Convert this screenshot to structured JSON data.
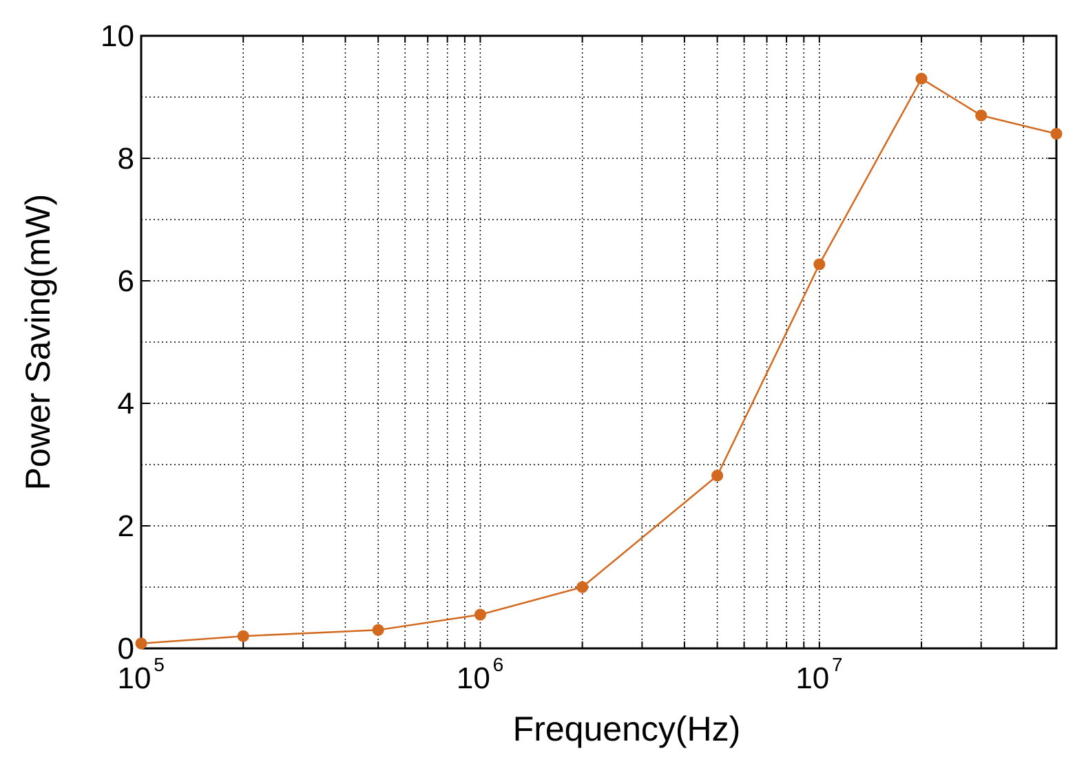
{
  "chart_data": {
    "type": "line",
    "title": "",
    "xlabel": "Frequency(Hz)",
    "ylabel": "Power Saving(mW)",
    "xscale": "log",
    "xlim": [
      100000,
      50000000
    ],
    "ylim": [
      0,
      10
    ],
    "grid": true,
    "legend": "none",
    "x_ticks": [
      {
        "value": 100000,
        "base": "10",
        "exp": "5"
      },
      {
        "value": 1000000,
        "base": "10",
        "exp": "6"
      },
      {
        "value": 10000000,
        "base": "10",
        "exp": "7"
      }
    ],
    "y_ticks": [
      {
        "value": 0,
        "label": "0"
      },
      {
        "value": 2,
        "label": "2"
      },
      {
        "value": 4,
        "label": "4"
      },
      {
        "value": 6,
        "label": "6"
      },
      {
        "value": 8,
        "label": "8"
      },
      {
        "value": 10,
        "label": "10"
      }
    ],
    "series": [
      {
        "x": [
          100000,
          200000,
          500000,
          1000000,
          2000000,
          5000000,
          10000000,
          20000000,
          30000000,
          50000000
        ],
        "y": [
          0.08,
          0.2,
          0.3,
          0.55,
          1.0,
          2.82,
          6.27,
          9.3,
          8.7,
          8.4
        ],
        "color": "#d2691e"
      }
    ]
  }
}
